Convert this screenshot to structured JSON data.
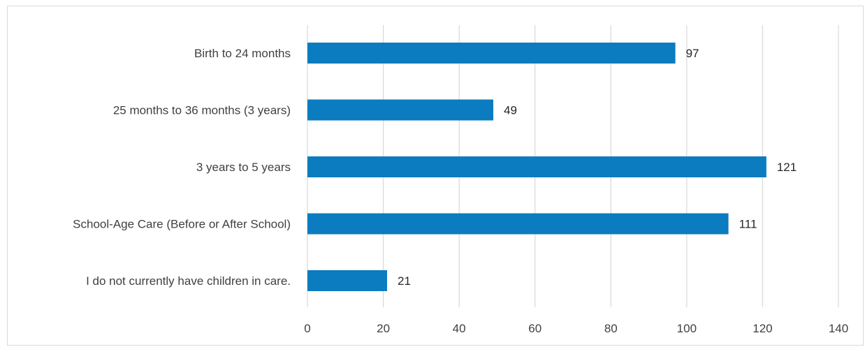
{
  "chart_data": {
    "type": "bar",
    "orientation": "horizontal",
    "categories": [
      "Birth to 24 months",
      "25 months to 36 months (3 years)",
      "3 years to 5 years",
      "School-Age Care (Before or After School)",
      "I do not currently have children in care."
    ],
    "values": [
      97,
      49,
      121,
      111,
      21
    ],
    "xlim": [
      0,
      140
    ],
    "x_ticks": [
      0,
      20,
      40,
      60,
      80,
      100,
      120,
      140
    ],
    "grid": true,
    "data_labels": true,
    "bar_color": "#0b7cbf",
    "grid_color": "#d9d9d9"
  }
}
